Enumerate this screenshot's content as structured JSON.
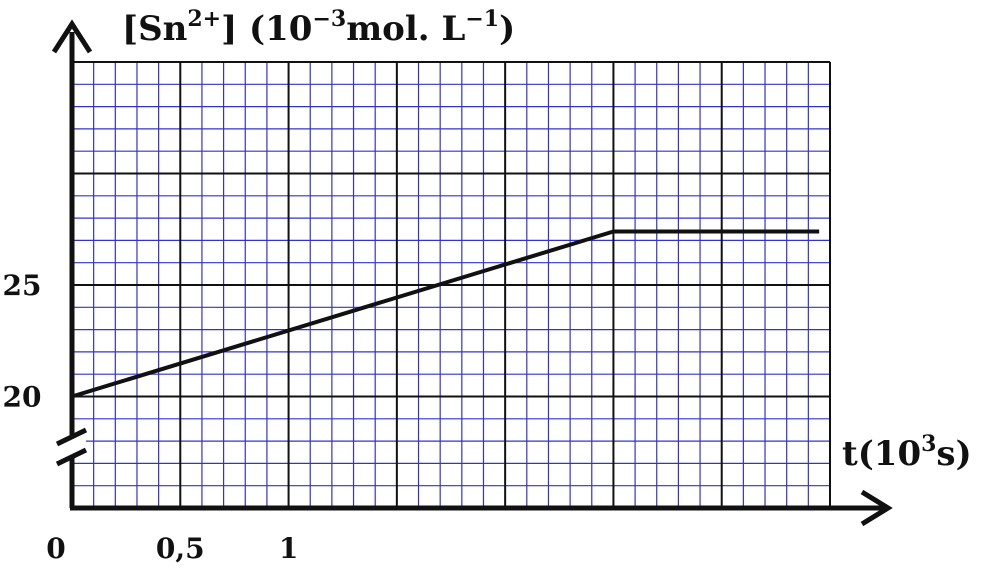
{
  "chart_data": {
    "type": "line",
    "y_title": {
      "bracket_open": "[Sn",
      "ion_charge": "2+",
      "bracket_close": "] (10",
      "unit_exp": "−3",
      "unit_mid": "mol. L",
      "unit_exp2": "−1",
      "unit_end": ")"
    },
    "x_title": {
      "pre": "t(10",
      "exp": "3",
      "post": "s)"
    },
    "x_tick_labels": [
      {
        "value": 0,
        "text": "0"
      },
      {
        "value": 0.5,
        "text": "0,5"
      },
      {
        "value": 1,
        "text": "1"
      }
    ],
    "y_tick_labels": [
      {
        "value": 20,
        "text": "20"
      },
      {
        "value": 25,
        "text": "25"
      }
    ],
    "xlim": [
      0,
      3.5
    ],
    "ylim": [
      15,
      35
    ],
    "y_axis_break": true,
    "grid": true,
    "series": [
      {
        "x": [
          0,
          2.5,
          3.45
        ],
        "y": [
          20,
          27.4,
          27.4
        ]
      }
    ],
    "colors": {
      "minor_grid": "#3333cc",
      "major_grid": "#111111",
      "curve": "#111111",
      "axis": "#111111"
    }
  }
}
